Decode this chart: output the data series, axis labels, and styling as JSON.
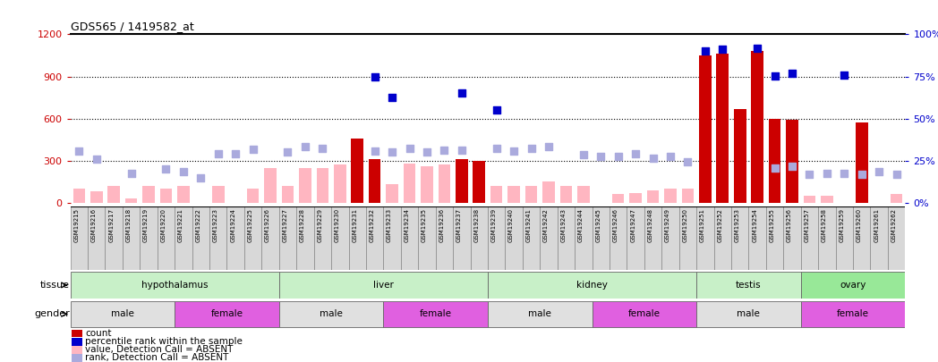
{
  "title": "GDS565 / 1419582_at",
  "samples": [
    "GSM19215",
    "GSM19216",
    "GSM19217",
    "GSM19218",
    "GSM19219",
    "GSM19220",
    "GSM19221",
    "GSM19222",
    "GSM19223",
    "GSM19224",
    "GSM19225",
    "GSM19226",
    "GSM19227",
    "GSM19228",
    "GSM19229",
    "GSM19230",
    "GSM19231",
    "GSM19232",
    "GSM19233",
    "GSM19234",
    "GSM19235",
    "GSM19236",
    "GSM19237",
    "GSM19238",
    "GSM19239",
    "GSM19240",
    "GSM19241",
    "GSM19242",
    "GSM19243",
    "GSM19244",
    "GSM19245",
    "GSM19246",
    "GSM19247",
    "GSM19248",
    "GSM19249",
    "GSM19250",
    "GSM19251",
    "GSM19252",
    "GSM19253",
    "GSM19254",
    "GSM19255",
    "GSM19256",
    "GSM19257",
    "GSM19258",
    "GSM19259",
    "GSM19260",
    "GSM19261",
    "GSM19262"
  ],
  "count": [
    0,
    0,
    0,
    0,
    0,
    0,
    0,
    0,
    0,
    0,
    0,
    0,
    0,
    0,
    0,
    0,
    460,
    310,
    0,
    0,
    0,
    0,
    310,
    300,
    0,
    0,
    0,
    0,
    0,
    0,
    0,
    0,
    0,
    0,
    0,
    0,
    1050,
    1060,
    670,
    1080,
    600,
    590,
    0,
    0,
    0,
    570,
    0,
    0
  ],
  "percentile_rank": [
    0,
    0,
    0,
    0,
    0,
    0,
    0,
    0,
    0,
    0,
    0,
    0,
    0,
    0,
    0,
    0,
    0,
    900,
    750,
    0,
    0,
    0,
    780,
    0,
    660,
    0,
    0,
    0,
    0,
    0,
    0,
    0,
    0,
    0,
    0,
    0,
    1080,
    1095,
    0,
    1100,
    905,
    920,
    0,
    0,
    910,
    0,
    0,
    0
  ],
  "absent_value": [
    100,
    80,
    120,
    30,
    120,
    100,
    120,
    0,
    120,
    0,
    100,
    250,
    120,
    250,
    250,
    270,
    260,
    150,
    130,
    280,
    260,
    270,
    270,
    200,
    120,
    120,
    120,
    150,
    120,
    120,
    0,
    60,
    70,
    90,
    100,
    100,
    0,
    0,
    0,
    0,
    60,
    60,
    50,
    50,
    0,
    40,
    0,
    60
  ],
  "absent_rank": [
    370,
    310,
    0,
    210,
    0,
    240,
    220,
    180,
    350,
    350,
    380,
    0,
    360,
    400,
    390,
    0,
    0,
    370,
    360,
    385,
    365,
    375,
    375,
    0,
    385,
    370,
    385,
    400,
    0,
    340,
    330,
    330,
    350,
    315,
    330,
    290,
    0,
    0,
    0,
    0,
    250,
    260,
    200,
    210,
    210,
    200,
    220,
    200
  ],
  "tissue_groups": [
    {
      "label": "hypothalamus",
      "start": 0,
      "end": 12,
      "color": "#C8F0C8"
    },
    {
      "label": "liver",
      "start": 12,
      "end": 24,
      "color": "#C8F0C8"
    },
    {
      "label": "kidney",
      "start": 24,
      "end": 36,
      "color": "#C8F0C8"
    },
    {
      "label": "testis",
      "start": 36,
      "end": 42,
      "color": "#C8F0C8"
    },
    {
      "label": "ovary",
      "start": 42,
      "end": 48,
      "color": "#98E898"
    }
  ],
  "gender_groups": [
    {
      "label": "male",
      "start": 0,
      "end": 6,
      "color": "#E0E0E0"
    },
    {
      "label": "female",
      "start": 6,
      "end": 12,
      "color": "#E060E0"
    },
    {
      "label": "male",
      "start": 12,
      "end": 18,
      "color": "#E0E0E0"
    },
    {
      "label": "female",
      "start": 18,
      "end": 24,
      "color": "#E060E0"
    },
    {
      "label": "male",
      "start": 24,
      "end": 30,
      "color": "#E0E0E0"
    },
    {
      "label": "female",
      "start": 30,
      "end": 36,
      "color": "#E060E0"
    },
    {
      "label": "male",
      "start": 36,
      "end": 42,
      "color": "#E0E0E0"
    },
    {
      "label": "female",
      "start": 42,
      "end": 48,
      "color": "#E060E0"
    }
  ],
  "ylim_left": [
    0,
    1200
  ],
  "ylim_right": [
    0,
    100
  ],
  "yticks_left": [
    0,
    300,
    600,
    900,
    1200
  ],
  "yticks_right": [
    0,
    25,
    50,
    75,
    100
  ],
  "bar_color_count": "#CC0000",
  "bar_color_absent_value": "#FFB6C1",
  "dot_color_percentile": "#0000CC",
  "dot_color_absent_rank": "#AAAADD",
  "background_color": "#FFFFFF",
  "left_axis_color": "#CC0000",
  "right_axis_color": "#0000CC",
  "sample_bg_color": "#D8D8D8",
  "sample_border_color": "#888888"
}
